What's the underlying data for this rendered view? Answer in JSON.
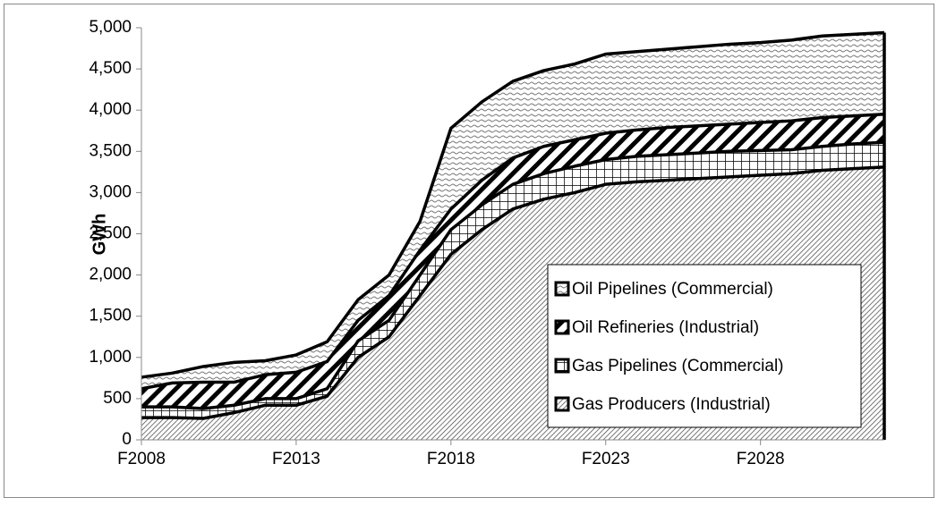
{
  "chart_data": {
    "type": "stacked-area",
    "y_label": "GWh",
    "categories": [
      "F2008",
      null,
      null,
      null,
      null,
      "F2013",
      null,
      null,
      null,
      null,
      "F2018",
      null,
      null,
      null,
      null,
      "F2023",
      null,
      null,
      null,
      null,
      "F2028",
      null,
      null,
      null,
      null
    ],
    "series": [
      {
        "name": "Gas Producers (Industrial)",
        "color": "#000000",
        "pattern": "dense-diagonal",
        "values": [
          270,
          270,
          260,
          330,
          420,
          420,
          530,
          1000,
          1250,
          1750,
          2250,
          2550,
          2800,
          2920,
          3000,
          3100,
          3130,
          3150,
          3170,
          3190,
          3210,
          3230,
          3270,
          3290,
          3310
        ]
      },
      {
        "name": "Gas Pipelines (Commercial)",
        "color": "#000000",
        "pattern": "grid",
        "values": [
          130,
          130,
          120,
          90,
          80,
          80,
          90,
          200,
          200,
          250,
          300,
          300,
          300,
          310,
          320,
          300,
          310,
          310,
          310,
          310,
          300,
          290,
          290,
          300,
          300
        ]
      },
      {
        "name": "Oil Refineries (Industrial)",
        "color": "#000000",
        "pattern": "wide-diagonal",
        "values": [
          220,
          290,
          320,
          280,
          290,
          320,
          330,
          250,
          300,
          300,
          250,
          300,
          320,
          330,
          320,
          320,
          320,
          330,
          330,
          330,
          340,
          350,
          350,
          340,
          340
        ]
      },
      {
        "name": "Oil Pipelines (Commercial)",
        "color": "#000000",
        "pattern": "wave",
        "values": [
          140,
          120,
          190,
          240,
          170,
          210,
          240,
          250,
          250,
          350,
          980,
          950,
          930,
          920,
          920,
          960,
          950,
          950,
          960,
          970,
          970,
          980,
          990,
          990,
          990
        ]
      }
    ],
    "ylim": [
      0,
      5000
    ],
    "yticks": [
      0,
      500,
      {
        "value": 1000,
        "label": "1,000"
      },
      {
        "value": 1500,
        "label": "1,500"
      },
      {
        "value": 2000,
        "label": "2,000"
      },
      {
        "value": 2500,
        "label": "2,500"
      },
      {
        "value": 3000,
        "label": "3,000"
      },
      {
        "value": 3500,
        "label": "3,500"
      },
      {
        "value": 4000,
        "label": "4,000"
      },
      {
        "value": 4500,
        "label": "4,500"
      },
      {
        "value": 5000,
        "label": "5,000"
      }
    ],
    "legend": "lower-right"
  }
}
